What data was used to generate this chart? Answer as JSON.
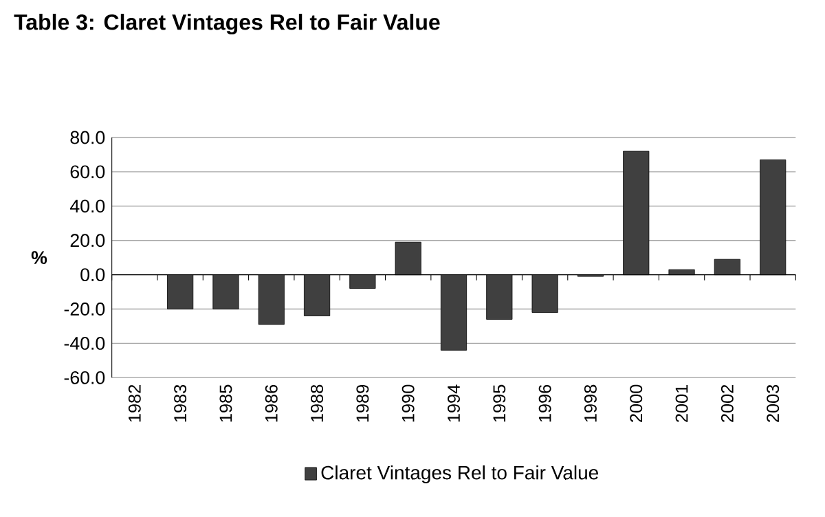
{
  "chart_data": {
    "type": "bar",
    "title": "Table 3: Claret Vintages Rel to Fair Value",
    "ylabel": "%",
    "categories": [
      "1982",
      "1983",
      "1985",
      "1986",
      "1988",
      "1989",
      "1990",
      "1994",
      "1995",
      "1996",
      "1998",
      "2000",
      "2001",
      "2002",
      "2003"
    ],
    "series": [
      {
        "name": "Claret Vintages Rel to Fair Value",
        "color": "#404040",
        "values": [
          null,
          -20,
          -20,
          -29,
          -24,
          -8,
          19,
          -44,
          -26,
          -22,
          -1,
          72,
          3,
          9,
          67
        ]
      }
    ],
    "ylim": [
      -60,
      80
    ],
    "yticks": [
      {
        "value": -60,
        "label": "-60.0"
      },
      {
        "value": -40,
        "label": "-40.0"
      },
      {
        "value": -20,
        "label": "-20.0"
      },
      {
        "value": 0,
        "label": "0.0"
      },
      {
        "value": 20,
        "label": "20.0"
      },
      {
        "value": 40,
        "label": "40.0"
      },
      {
        "value": 60,
        "label": "60.0"
      },
      {
        "value": 80,
        "label": "80.0"
      }
    ],
    "grid": "y",
    "legend": "bottom"
  }
}
